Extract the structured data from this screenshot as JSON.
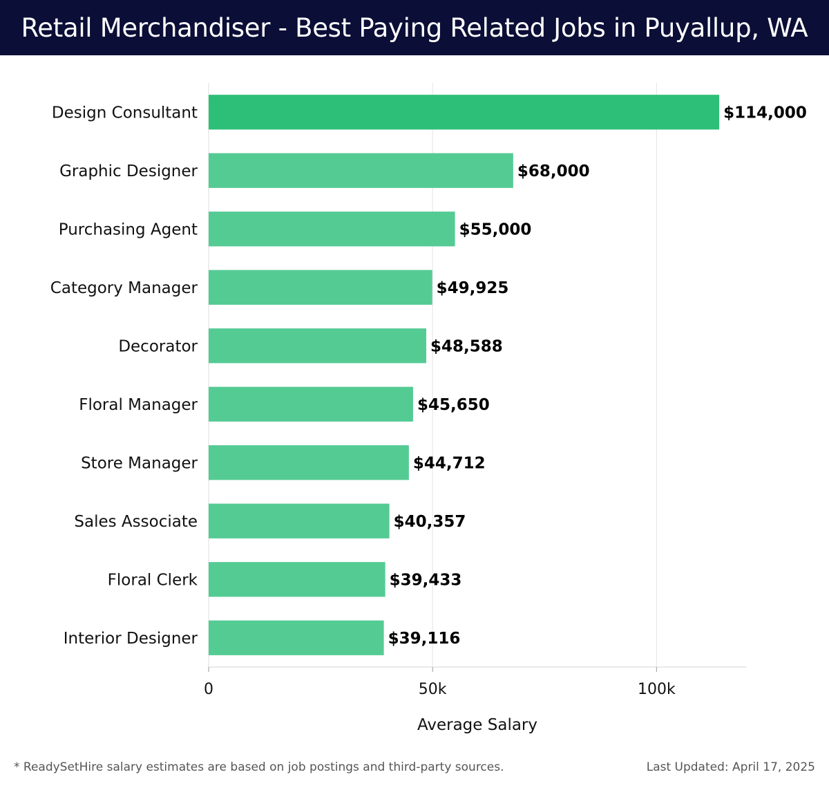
{
  "title": "Retail Merchandiser - Best Paying Related Jobs in Puyallup, WA",
  "footer": {
    "note": "* ReadySetHire salary estimates are based on job postings and third-party sources.",
    "updated": "Last Updated: April 17, 2025"
  },
  "colors": {
    "header_bg": "#0b0e36",
    "top_bar": "#2dbf78",
    "bar": "#55cb94",
    "grid": "#e4e4e4"
  },
  "chart_data": {
    "type": "bar",
    "orientation": "horizontal",
    "categories": [
      "Design Consultant",
      "Graphic Designer",
      "Purchasing Agent",
      "Category Manager",
      "Decorator",
      "Floral Manager",
      "Store Manager",
      "Sales Associate",
      "Floral Clerk",
      "Interior Designer"
    ],
    "values": [
      114000,
      68000,
      55000,
      49925,
      48588,
      45650,
      44712,
      40357,
      39433,
      39116
    ],
    "value_labels": [
      "$114,000",
      "$68,000",
      "$55,000",
      "$49,925",
      "$48,588",
      "$45,650",
      "$44,712",
      "$40,357",
      "$39,433",
      "$39,116"
    ],
    "xlabel": "Average Salary",
    "ylabel": "",
    "xlim": [
      0,
      120000
    ],
    "xticks": [
      0,
      50000,
      100000
    ],
    "xtick_labels": [
      "0",
      "50k",
      "100k"
    ],
    "grid": true
  }
}
